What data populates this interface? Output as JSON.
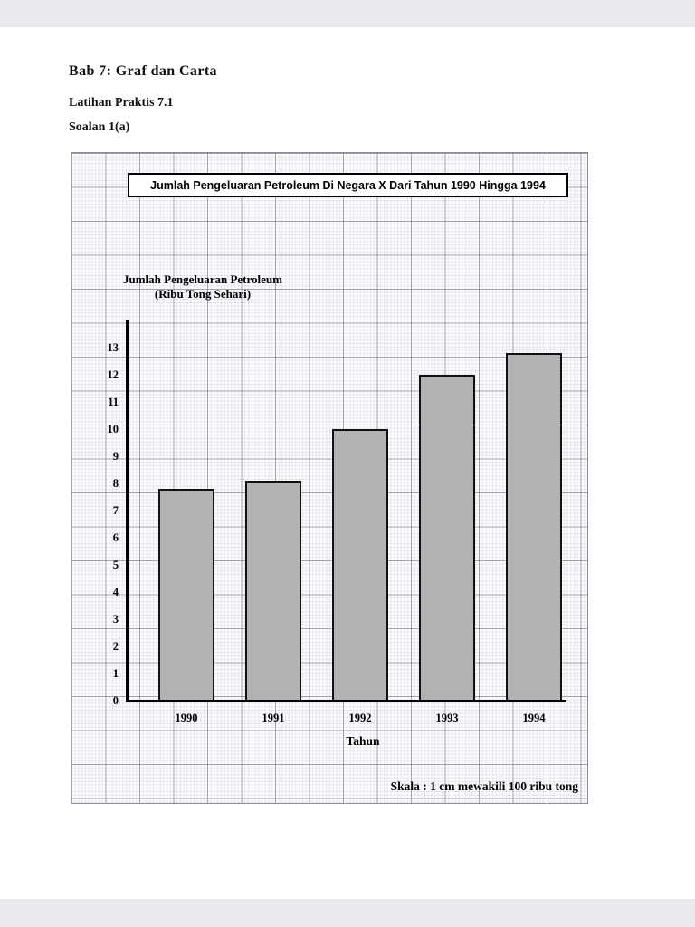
{
  "document": {
    "heading": "Bab 7: Graf dan Carta",
    "subheading": "Latihan Praktis 7.1",
    "question": "Soalan 1(a)"
  },
  "chart_data": {
    "type": "bar",
    "title": "Jumlah Pengeluaran Petroleum Di Negara X Dari Tahun 1990 Hingga 1994",
    "ylabel_line1": "Jumlah Pengeluaran Petroleum",
    "ylabel_line2": "(Ribu Tong Sehari)",
    "xlabel": "Tahun",
    "scale_note": "Skala : 1 cm mewakili 100 ribu tong",
    "categories": [
      "1990",
      "1991",
      "1992",
      "1993",
      "1994"
    ],
    "values": [
      7.8,
      8.1,
      10,
      12,
      12.8
    ],
    "ylim": [
      0,
      13
    ],
    "ytick_step": 1,
    "grid": true,
    "legend": false,
    "bar_color": "#b3b3b3",
    "bar_border_color": "#111111",
    "axis_color": "#000000"
  }
}
